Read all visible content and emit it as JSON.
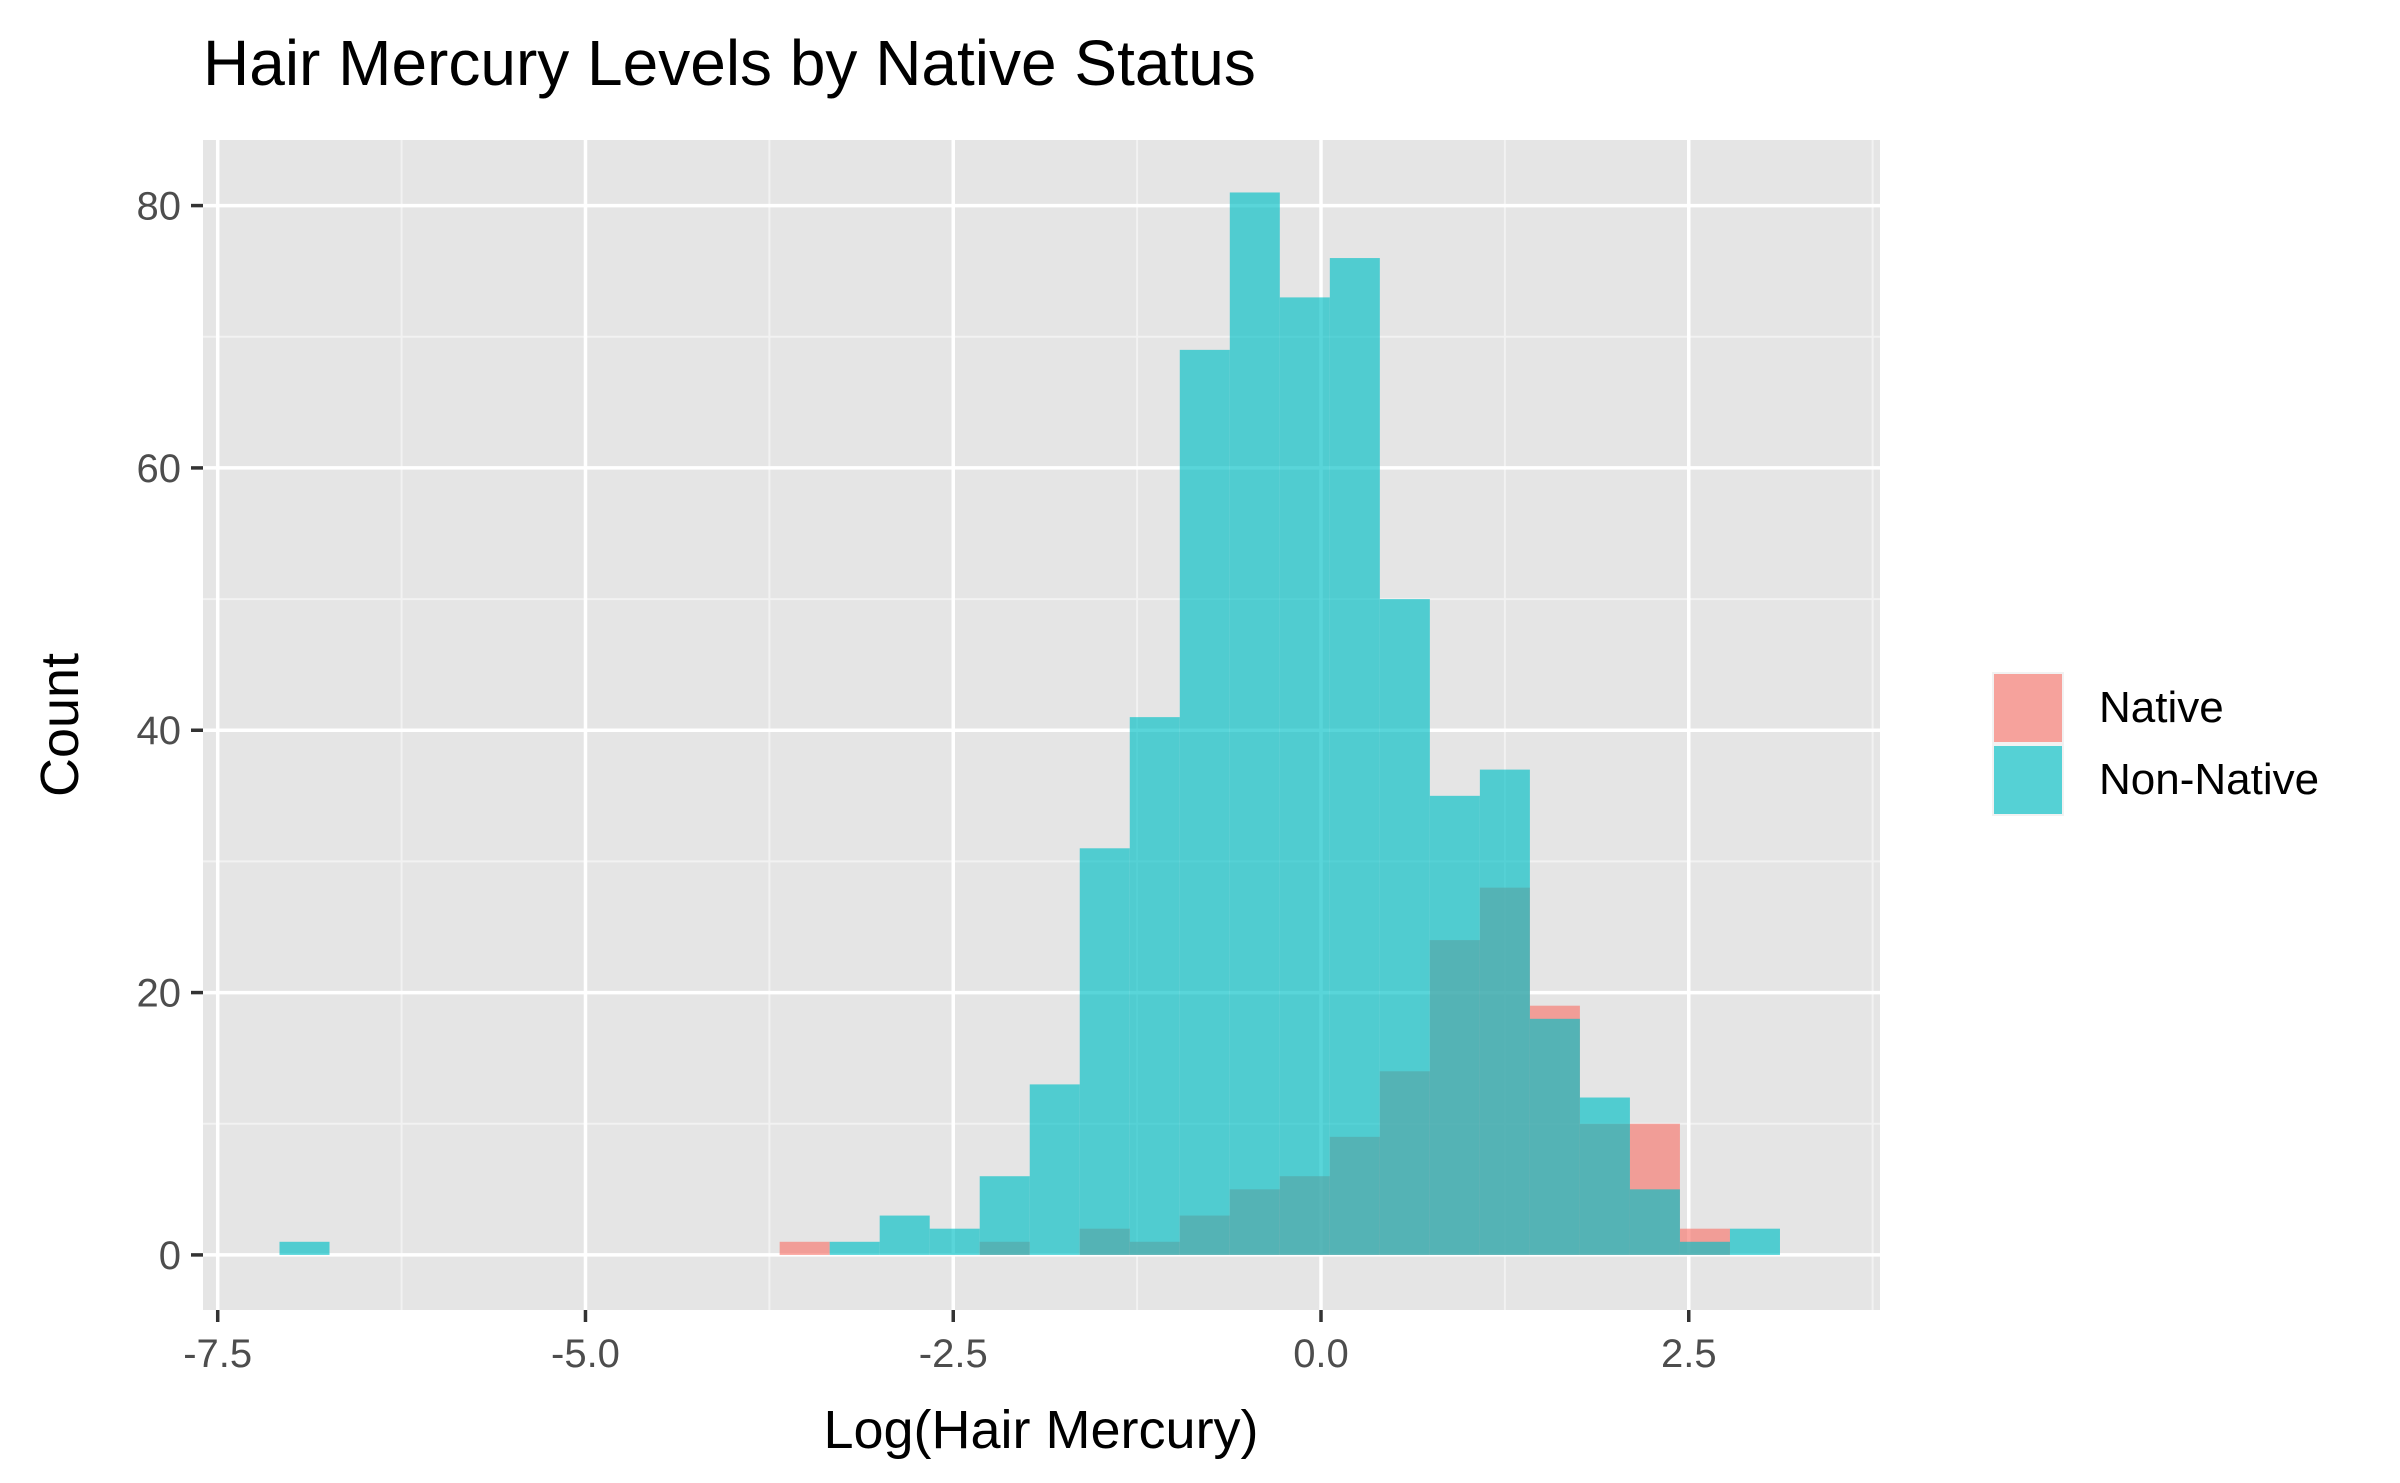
{
  "chart_data": {
    "type": "histogram",
    "title": "Hair Mercury Levels by Native Status",
    "xlabel": "Log(Hair Mercury)",
    "ylabel": "Count",
    "xlim": [
      -7.6,
      3.8
    ],
    "ylim": [
      -4.2,
      85
    ],
    "x_ticks": [
      -7.5,
      -5.0,
      -2.5,
      0.0,
      2.5
    ],
    "x_tick_labels": [
      "-7.5",
      "-5.0",
      "-2.5",
      "0.0",
      "2.5"
    ],
    "y_ticks": [
      0,
      20,
      40,
      60,
      80
    ],
    "y_tick_labels": [
      "0",
      "20",
      "40",
      "60",
      "80"
    ],
    "grid": true,
    "background": "#E5E5E5",
    "legend_position": "right",
    "bin_edges": [
      -7.08,
      -6.74,
      -6.4,
      -6.06,
      -5.72,
      -5.38,
      -5.04,
      -4.7,
      -4.36,
      -4.02,
      -3.68,
      -3.34,
      -3.0,
      -2.66,
      -2.32,
      -1.98,
      -1.64,
      -1.3,
      -0.96,
      -0.62,
      -0.28,
      0.06,
      0.4,
      0.74,
      1.08,
      1.42,
      1.76,
      2.1,
      2.44,
      2.78,
      3.12
    ],
    "series": [
      {
        "name": "Native",
        "color": "#F8766D",
        "counts": [
          0,
          0,
          0,
          0,
          0,
          0,
          0,
          0,
          0,
          0,
          1,
          0,
          0,
          0,
          1,
          0,
          2,
          1,
          3,
          5,
          6,
          9,
          14,
          24,
          28,
          19,
          10,
          10,
          2,
          0
        ]
      },
      {
        "name": "Non-Native",
        "color": "#00BFC4",
        "counts": [
          1,
          0,
          0,
          0,
          0,
          0,
          0,
          0,
          0,
          0,
          0,
          1,
          3,
          2,
          6,
          13,
          31,
          41,
          69,
          81,
          73,
          76,
          50,
          35,
          37,
          18,
          12,
          5,
          1,
          2
        ]
      }
    ]
  }
}
